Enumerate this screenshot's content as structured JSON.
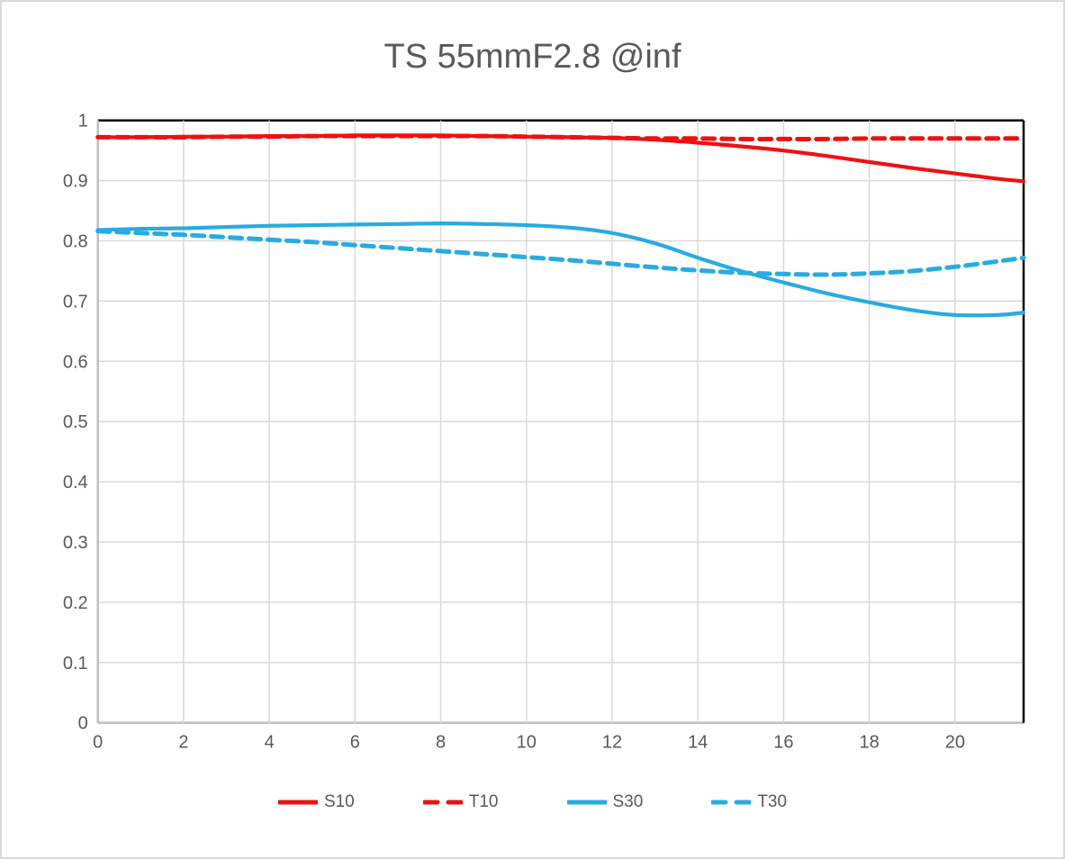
{
  "title": "TS 55mmF2.8 @inf",
  "colors": {
    "red": "#ee1111",
    "blue": "#29abe2",
    "text": "#595959",
    "gridline": "#d9d9d9",
    "axis_line": "#bfbfbf",
    "plot_border_top_right": "#000000",
    "canvas_border": "#d9d9d9",
    "background": "#ffffff"
  },
  "chart_data": {
    "type": "line",
    "title": "TS 55mmF2.8 @inf",
    "xlabel": "",
    "ylabel": "",
    "xlim": [
      0,
      21.6
    ],
    "ylim": [
      0,
      1
    ],
    "grid": true,
    "legend_position": "bottom",
    "x_tick_values": [
      0,
      2,
      4,
      6,
      8,
      10,
      12,
      14,
      16,
      18,
      20
    ],
    "x_tick_labels": [
      "0",
      "2",
      "4",
      "6",
      "8",
      "10",
      "12",
      "14",
      "16",
      "18",
      "20"
    ],
    "y_tick_values": [
      0,
      0.1,
      0.2,
      0.3,
      0.4,
      0.5,
      0.6,
      0.7,
      0.8,
      0.9,
      1
    ],
    "y_tick_labels": [
      "0",
      "0.1",
      "0.2",
      "0.3",
      "0.4",
      "0.5",
      "0.6",
      "0.7",
      "0.8",
      "0.9",
      "1"
    ],
    "x": [
      0,
      1,
      2,
      3,
      4,
      5,
      6,
      7,
      8,
      9,
      10,
      11,
      12,
      13,
      14,
      15,
      16,
      17,
      18,
      19,
      20,
      21,
      21.6
    ],
    "series": [
      {
        "name": "S10",
        "color_key": "red",
        "dash": false,
        "values": [
          0.972,
          0.972,
          0.973,
          0.973,
          0.974,
          0.974,
          0.975,
          0.975,
          0.975,
          0.974,
          0.973,
          0.972,
          0.971,
          0.968,
          0.963,
          0.957,
          0.95,
          0.941,
          0.931,
          0.921,
          0.912,
          0.903,
          0.899
        ]
      },
      {
        "name": "T10",
        "color_key": "red",
        "dash": true,
        "values": [
          0.972,
          0.972,
          0.972,
          0.973,
          0.973,
          0.974,
          0.974,
          0.974,
          0.974,
          0.974,
          0.973,
          0.972,
          0.971,
          0.97,
          0.97,
          0.969,
          0.969,
          0.969,
          0.97,
          0.97,
          0.97,
          0.97,
          0.97
        ]
      },
      {
        "name": "S30",
        "color_key": "blue",
        "dash": false,
        "values": [
          0.818,
          0.82,
          0.821,
          0.823,
          0.825,
          0.826,
          0.827,
          0.828,
          0.829,
          0.828,
          0.826,
          0.822,
          0.813,
          0.796,
          0.772,
          0.75,
          0.731,
          0.713,
          0.698,
          0.685,
          0.677,
          0.677,
          0.681
        ]
      },
      {
        "name": "T30",
        "color_key": "blue",
        "dash": true,
        "values": [
          0.816,
          0.813,
          0.81,
          0.806,
          0.802,
          0.798,
          0.793,
          0.788,
          0.783,
          0.778,
          0.773,
          0.768,
          0.762,
          0.756,
          0.751,
          0.747,
          0.745,
          0.744,
          0.746,
          0.75,
          0.757,
          0.766,
          0.772
        ]
      }
    ]
  }
}
